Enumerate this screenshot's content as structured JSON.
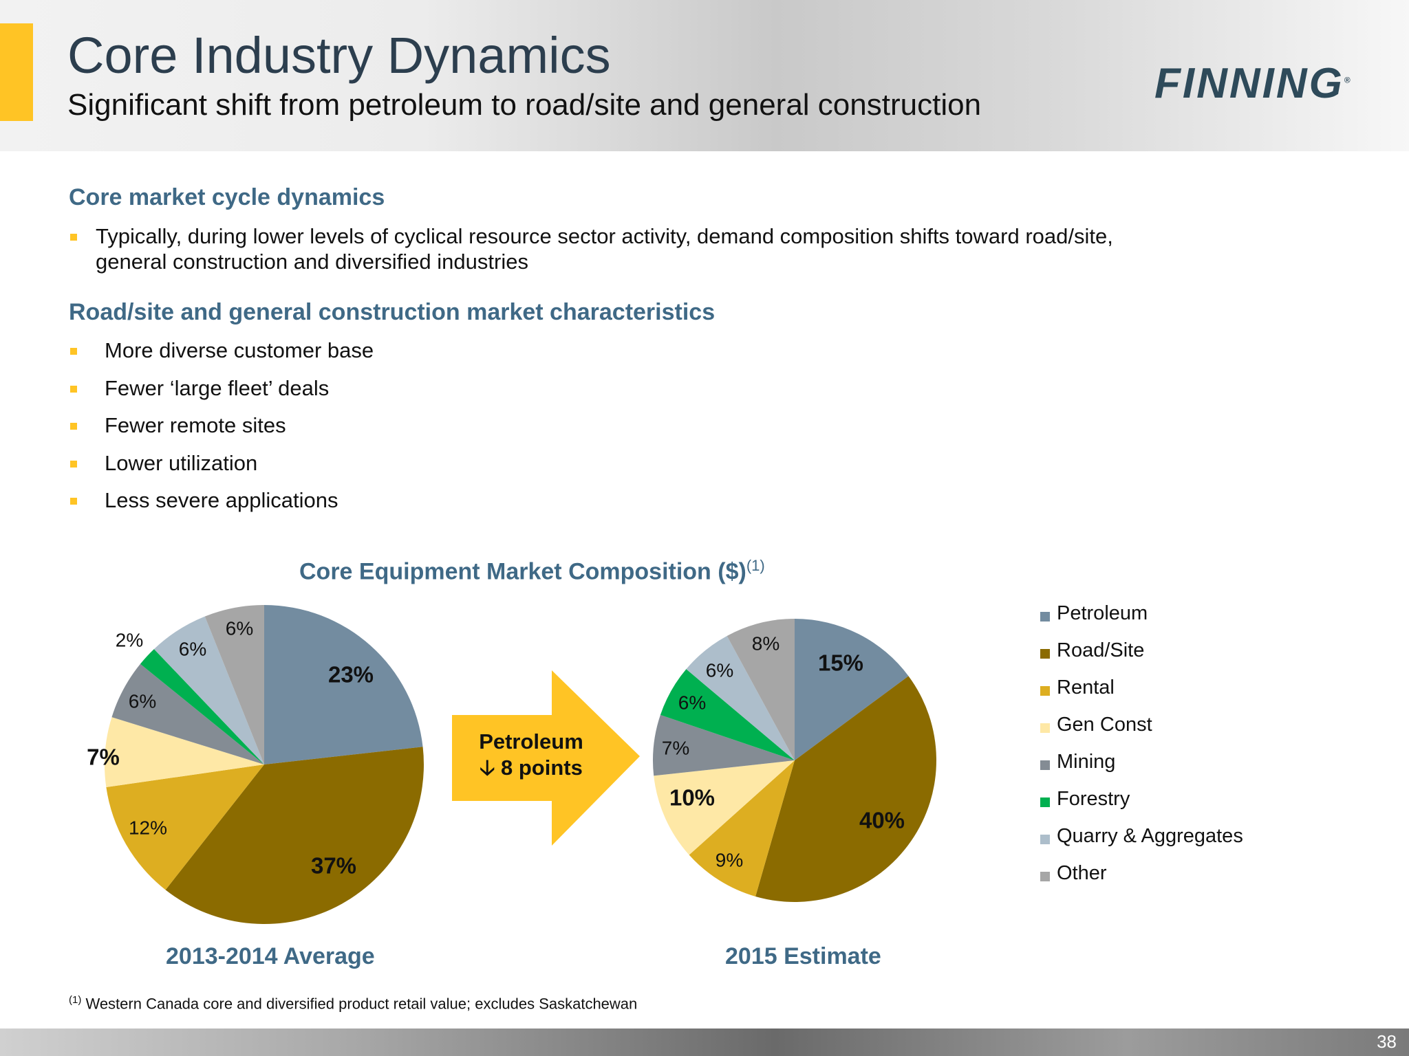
{
  "header": {
    "title": "Core Industry Dynamics",
    "subtitle": "Significant shift from petroleum to road/site and general construction",
    "logo_text": "FINNING",
    "logo_mark": "®"
  },
  "section1": {
    "heading": "Core market cycle dynamics",
    "bullets": [
      "Typically, during lower levels of cyclical resource sector activity, demand composition shifts toward road/site,",
      "general construction and diversified industries"
    ]
  },
  "section2": {
    "heading": "Road/site and general construction market characteristics",
    "bullets": [
      "More diverse customer base",
      "Fewer ‘large fleet’ deals",
      "Fewer remote sites",
      "Lower utilization",
      "Less severe applications"
    ]
  },
  "chart_data": {
    "type": "pie",
    "title": "Core Equipment Market Composition ($)",
    "title_superscript": "(1)",
    "categories": [
      "Petroleum",
      "Road/Site",
      "Rental",
      "Gen Const",
      "Mining",
      "Forestry",
      "Quarry & Aggregates",
      "Other"
    ],
    "colors": [
      "#738CA0",
      "#8B6B00",
      "#DDAE21",
      "#FEE8A6",
      "#848C94",
      "#00B050",
      "#ADBECB",
      "#A6A6A6"
    ],
    "legend_position": "right",
    "series": [
      {
        "name": "2013-2014 Average",
        "values": [
          23,
          37,
          12,
          7,
          6,
          2,
          6,
          6
        ],
        "labels": [
          "23%",
          "37%",
          "12%",
          "7%",
          "6%",
          "2%",
          "6%",
          "6%"
        ]
      },
      {
        "name": "2015 Estimate",
        "values": [
          15,
          40,
          9,
          10,
          7,
          6,
          6,
          8
        ],
        "labels": [
          "15%",
          "40%",
          "9%",
          "10%",
          "7%",
          "6%",
          "6%",
          "8%"
        ]
      }
    ],
    "annotation": {
      "line1": "Petroleum",
      "line2": "🡣 8 points"
    }
  },
  "footnote": {
    "marker": "(1)",
    "text": " Western Canada core and diversified product retail value; excludes Saskatchewan"
  },
  "page_number": "38"
}
